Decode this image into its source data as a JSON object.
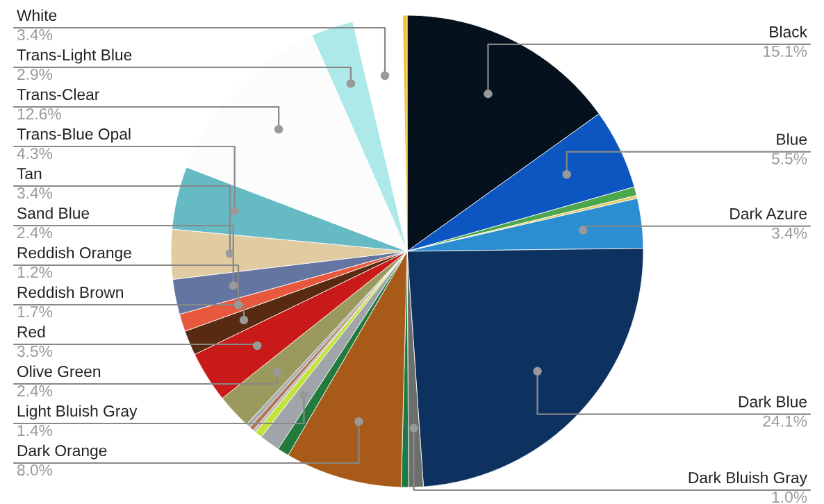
{
  "chart_data": {
    "type": "pie",
    "categories": [
      "Black",
      "Blue",
      null,
      null,
      "Dark Azure",
      "Dark Blue",
      "Dark Bluish Gray",
      null,
      "Dark Orange",
      null,
      "Light Bluish Gray",
      null,
      null,
      null,
      null,
      "Olive Green",
      "Red",
      "Reddish Brown",
      "Reddish Orange",
      "Sand Blue",
      "Tan",
      "Trans-Blue Opal",
      "Trans-Clear",
      "Trans-Light Blue",
      "White",
      null
    ],
    "values": [
      15.1,
      5.5,
      0.6,
      0.2,
      3.4,
      24.1,
      1.0,
      0.5,
      8.0,
      0.8,
      1.4,
      0.5,
      0.2,
      0.3,
      0.3,
      2.4,
      3.5,
      1.7,
      1.2,
      2.4,
      3.4,
      4.3,
      12.6,
      2.9,
      3.4,
      0.3
    ],
    "value_labels": [
      "15.1%",
      "5.5%",
      null,
      null,
      "3.4%",
      "24.1%",
      "1.0%",
      null,
      "8.0%",
      null,
      "1.4%",
      null,
      null,
      null,
      null,
      "2.4%",
      "3.5%",
      "1.7%",
      "1.2%",
      "2.4%",
      "3.4%",
      "4.3%",
      "12.6%",
      "2.9%",
      "3.4%",
      null
    ],
    "colors": [
      "#05111c",
      "#0d55c0",
      "#4ca64c",
      "#e8c86a",
      "#2a8ed0",
      "#0d3260",
      "#6b6e6a",
      "#1e7a45",
      "#a85a18",
      "#237a3d",
      "#a0a5a9",
      "#c4e33a",
      "#b8bcbe",
      "#b07a5a",
      "#a9adb0",
      "#9a9a5e",
      "#c91a1a",
      "#582a12",
      "#e8583c",
      "#6375a0",
      "#e1cba0",
      "#66bac4",
      "#fcfcfc",
      "#aee9ea",
      "#ffffff",
      "#f2c230"
    ],
    "legend": false
  }
}
